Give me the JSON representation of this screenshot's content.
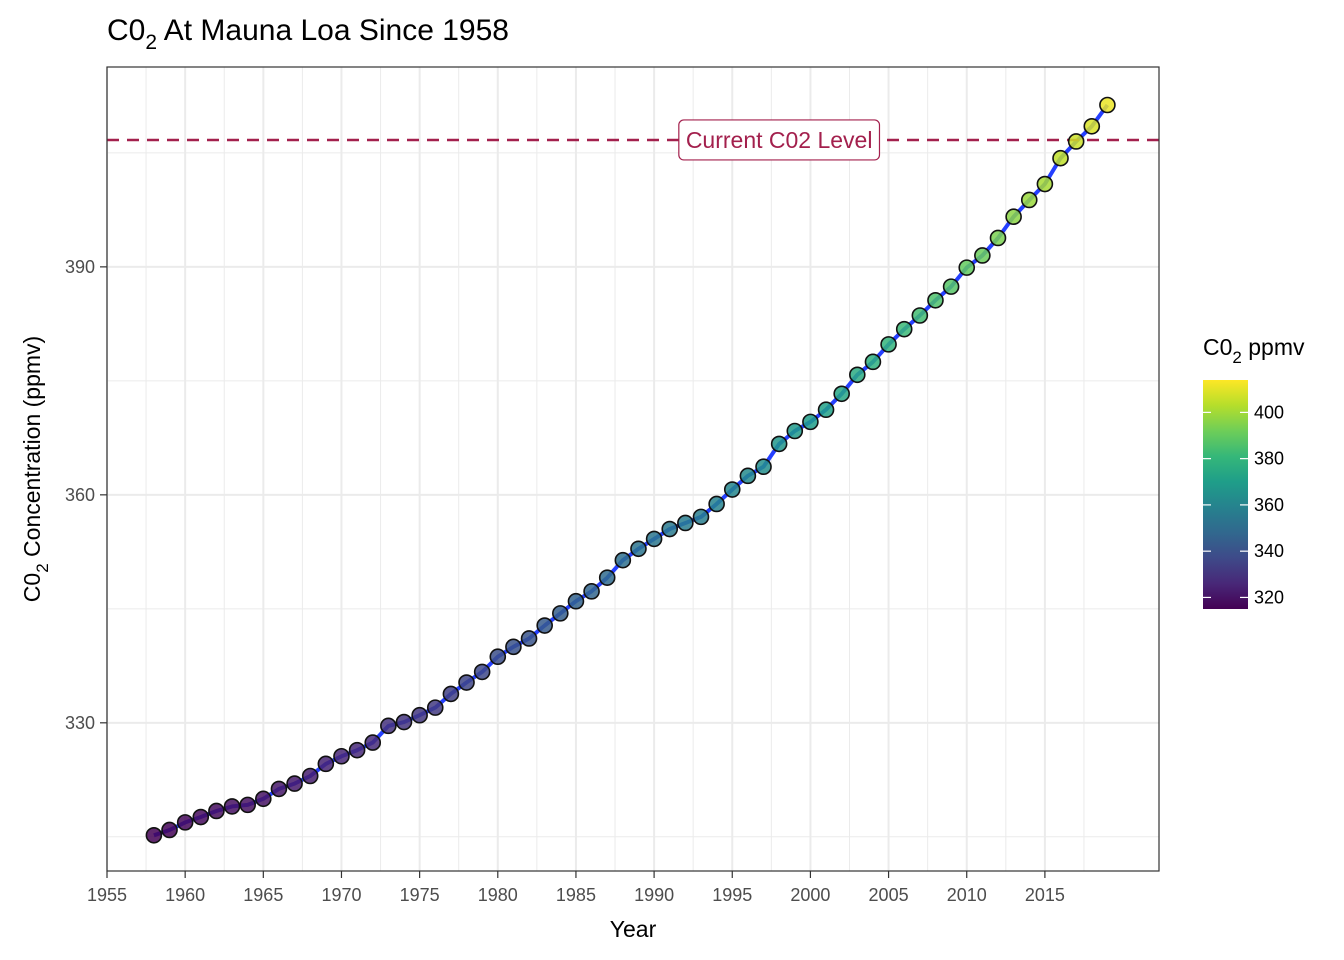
{
  "chart_data": {
    "type": "scatter",
    "title_base": "C0",
    "title_sub": "2",
    "title_rest": " At Mauna Loa Since 1958",
    "xlabel": "Year",
    "ylabel_base": "C0",
    "ylabel_sub": "2",
    "ylabel_rest": " Concentration (ppmv)",
    "xlim": [
      1955,
      2022.3
    ],
    "ylim": [
      310.5,
      416.3
    ],
    "x_ticks": [
      1955,
      1960,
      1965,
      1970,
      1975,
      1980,
      1985,
      1990,
      1995,
      2000,
      2005,
      2010,
      2015
    ],
    "x_tick_labels": [
      "1955",
      "1960",
      "1965",
      "1970",
      "1975",
      "1980",
      "1985",
      "1990",
      "1995",
      "2000",
      "2005",
      "2010",
      "2015"
    ],
    "y_ticks": [
      330,
      360,
      390
    ],
    "y_tick_labels": [
      "330",
      "360",
      "390"
    ],
    "grid": true,
    "reference_line": {
      "y": 406.7,
      "label": "Current C02 Level",
      "label_x": 1998,
      "color": "#a3204d"
    },
    "trend_line_color": "#2540ff",
    "legend": {
      "title_base": "C0",
      "title_sub": "2",
      "title_rest": " ppmv",
      "placement": "right",
      "range": [
        315,
        414
      ],
      "ticks": [
        320,
        340,
        360,
        380,
        400
      ],
      "tick_labels": [
        "320",
        "340",
        "360",
        "380",
        "400"
      ]
    },
    "colormap": [
      "#440154",
      "#482878",
      "#3e4a89",
      "#31688e",
      "#26828e",
      "#1f9e89",
      "#35b779",
      "#6ece58",
      "#b5de2b",
      "#fde725"
    ],
    "series": [
      {
        "x": [
          1958,
          1959,
          1960,
          1961,
          1962,
          1963,
          1964,
          1965,
          1966,
          1967,
          1968,
          1969,
          1970,
          1971,
          1972,
          1973,
          1974,
          1975,
          1976,
          1977,
          1978,
          1979,
          1980,
          1981,
          1982,
          1983,
          1984,
          1985,
          1986,
          1987,
          1988,
          1989,
          1990,
          1991,
          1992,
          1993,
          1994,
          1995,
          1996,
          1997,
          1998,
          1999,
          2000,
          2001,
          2002,
          2003,
          2004,
          2005,
          2006,
          2007,
          2008,
          2009,
          2010,
          2011,
          2012,
          2013,
          2014,
          2015,
          2016,
          2017,
          2018,
          2019
        ],
        "y": [
          315.2,
          315.9,
          316.9,
          317.6,
          318.4,
          319.0,
          319.2,
          320.0,
          321.3,
          322.0,
          323.0,
          324.6,
          325.6,
          326.4,
          327.4,
          329.6,
          330.1,
          331.0,
          332.0,
          333.8,
          335.3,
          336.7,
          338.7,
          340.0,
          341.1,
          342.8,
          344.4,
          346.0,
          347.3,
          349.1,
          351.4,
          352.9,
          354.2,
          355.5,
          356.3,
          357.1,
          358.8,
          360.7,
          362.5,
          363.7,
          366.7,
          368.4,
          369.6,
          371.2,
          373.3,
          375.8,
          377.5,
          379.8,
          381.8,
          383.6,
          385.6,
          387.4,
          389.9,
          391.5,
          393.8,
          396.6,
          398.8,
          400.9,
          404.3,
          406.5,
          408.5,
          411.3
        ]
      }
    ]
  }
}
